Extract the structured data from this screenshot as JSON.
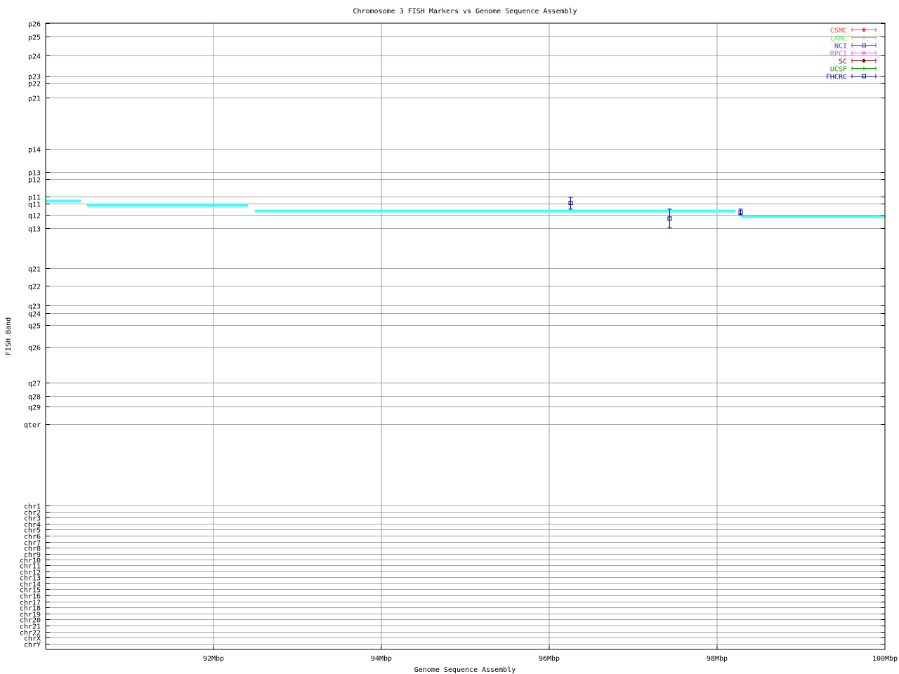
{
  "chart_data": {
    "type": "scatter",
    "title": "Chromosome 3 FISH Markers vs Genome Sequence Assembly",
    "xlabel": "Genome Sequence Assembly",
    "ylabel": "FISH Band",
    "xlim": [
      90,
      100
    ],
    "x_unit": "Mbp",
    "xticks": [
      {
        "value": 92,
        "label": "92Mbp"
      },
      {
        "value": 94,
        "label": "94Mbp"
      },
      {
        "value": 96,
        "label": "96Mbp"
      },
      {
        "value": 98,
        "label": "98Mbp"
      },
      {
        "value": 100,
        "label": "100Mbp"
      }
    ],
    "ylim": [
      0,
      100
    ],
    "y_inverted": true,
    "grid": true,
    "yticks": [
      {
        "value": 0,
        "label": "p26"
      },
      {
        "value": 2.1,
        "label": "p25"
      },
      {
        "value": 5.2,
        "label": "p24"
      },
      {
        "value": 8.4,
        "label": "p23"
      },
      {
        "value": 9.5,
        "label": "p22"
      },
      {
        "value": 11.9,
        "label": "p21"
      },
      {
        "value": 20.1,
        "label": "p14"
      },
      {
        "value": 23.8,
        "label": "p13"
      },
      {
        "value": 24.9,
        "label": "p12"
      },
      {
        "value": 27.7,
        "label": "p11"
      },
      {
        "value": 28.8,
        "label": "q11"
      },
      {
        "value": 30.6,
        "label": "q12"
      },
      {
        "value": 32.7,
        "label": "q13"
      },
      {
        "value": 39.1,
        "label": "q21"
      },
      {
        "value": 41.9,
        "label": "q22"
      },
      {
        "value": 45.1,
        "label": "q23"
      },
      {
        "value": 46.3,
        "label": "q24"
      },
      {
        "value": 48.2,
        "label": "q25"
      },
      {
        "value": 51.7,
        "label": "q26"
      },
      {
        "value": 57.4,
        "label": "q27"
      },
      {
        "value": 59.5,
        "label": "q28"
      },
      {
        "value": 61.2,
        "label": "q29"
      },
      {
        "value": 64.0,
        "label": "qter"
      },
      {
        "value": 77.0,
        "label": "chr1"
      },
      {
        "value": 78.0,
        "label": "chr2"
      },
      {
        "value": 78.9,
        "label": "chr3"
      },
      {
        "value": 79.9,
        "label": "chr4"
      },
      {
        "value": 80.8,
        "label": "chr5"
      },
      {
        "value": 81.8,
        "label": "chr6"
      },
      {
        "value": 82.8,
        "label": "chr7"
      },
      {
        "value": 83.7,
        "label": "chr8"
      },
      {
        "value": 84.7,
        "label": "chr9"
      },
      {
        "value": 85.6,
        "label": "chr10"
      },
      {
        "value": 86.6,
        "label": "chr11"
      },
      {
        "value": 87.6,
        "label": "chr12"
      },
      {
        "value": 88.5,
        "label": "chr13"
      },
      {
        "value": 89.5,
        "label": "chr14"
      },
      {
        "value": 90.4,
        "label": "chr15"
      },
      {
        "value": 91.4,
        "label": "chr16"
      },
      {
        "value": 92.4,
        "label": "chr17"
      },
      {
        "value": 93.3,
        "label": "chr18"
      },
      {
        "value": 94.3,
        "label": "chr19"
      },
      {
        "value": 95.2,
        "label": "chr20"
      },
      {
        "value": 96.2,
        "label": "chr21"
      },
      {
        "value": 97.2,
        "label": "chr22"
      },
      {
        "value": 98.1,
        "label": "chrX"
      },
      {
        "value": 99.1,
        "label": "chrY"
      }
    ],
    "legend_position": "top-right",
    "legend": [
      {
        "name": "CSMC",
        "color": "#ff4040",
        "symbol": "diamond"
      },
      {
        "name": "LANL",
        "color": "#40ff40",
        "symbol": "plus"
      },
      {
        "name": "NCI",
        "color": "#4040ff",
        "symbol": "square"
      },
      {
        "name": "RPCI",
        "color": "#ff40ff",
        "symbol": "cross"
      },
      {
        "name": "SC",
        "color": "#a00000",
        "symbol": "diamond"
      },
      {
        "name": "UCSF",
        "color": "#00a000",
        "symbol": "plus"
      },
      {
        "name": "FHCRC",
        "color": "#0000a0",
        "symbol": "square"
      }
    ],
    "assembly_segments": {
      "color": "#40ffff",
      "segments": [
        {
          "x_start": 90.0,
          "x_end": 90.42,
          "y": 28.4
        },
        {
          "x_start": 90.49,
          "x_end": 92.41,
          "y": 29.1
        },
        {
          "x_start": 92.49,
          "x_end": 98.22,
          "y": 30.0
        },
        {
          "x_start": 98.28,
          "x_end": 100.0,
          "y": 30.9
        }
      ]
    },
    "series": [
      {
        "name": "FHCRC",
        "points": [
          {
            "x": 96.25,
            "y": 28.7,
            "y_low": 27.8,
            "y_high": 29.7
          },
          {
            "x": 97.43,
            "y": 31.2,
            "y_low": 29.7,
            "y_high": 32.7
          },
          {
            "x": 98.28,
            "y": 30.2,
            "y_low": 29.7,
            "y_high": 30.6
          }
        ]
      }
    ]
  }
}
